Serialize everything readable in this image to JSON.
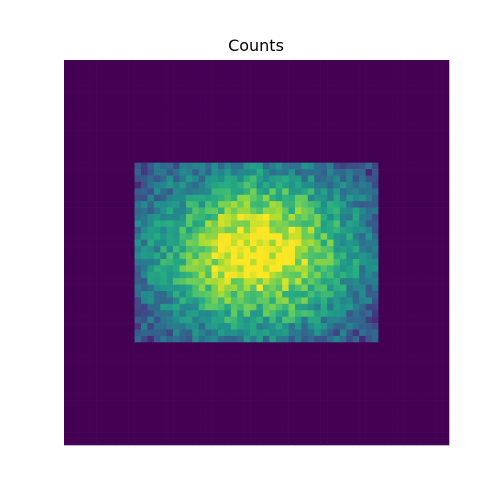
{
  "chart_data": {
    "type": "heatmap",
    "title": "Counts",
    "xlabel": "",
    "ylabel": "",
    "axes_visible": false,
    "grid": false,
    "colormap": "viridis",
    "nx": 60,
    "ny": 60,
    "value_range": [
      0,
      1
    ],
    "populated_region": {
      "x_range": [
        0.19,
        0.81
      ],
      "y_range": [
        0.26,
        0.74
      ]
    },
    "peak_location": [
      0.5,
      0.5
    ],
    "background_value": 0,
    "colors": {
      "background": "#440154",
      "low": "#3b528b",
      "mid": "#21918c",
      "high": "#5ec962",
      "peak": "#fde725"
    }
  }
}
